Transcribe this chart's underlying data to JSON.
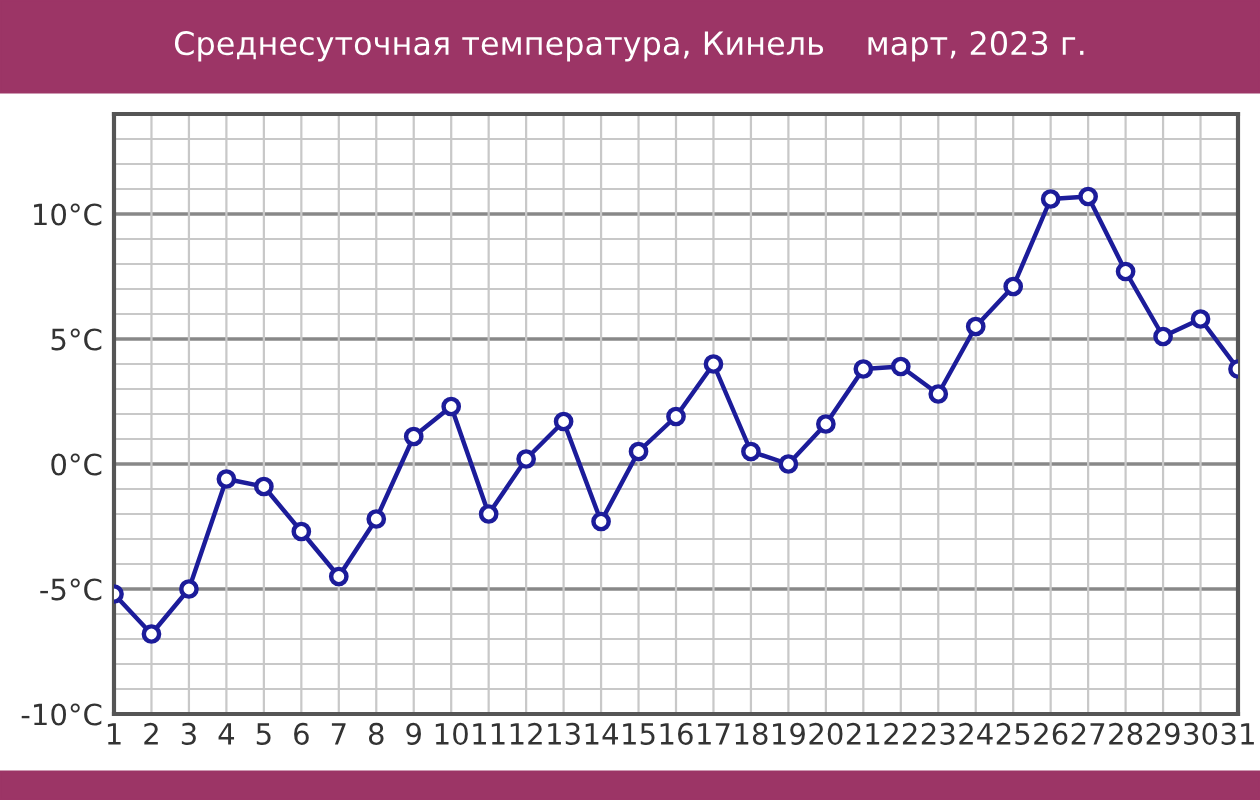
{
  "chart_data": {
    "type": "line",
    "title": "Среднесуточная температура, Кинель    март, 2023 г.",
    "x": [
      1,
      2,
      3,
      4,
      5,
      6,
      7,
      8,
      9,
      10,
      11,
      12,
      13,
      14,
      15,
      16,
      17,
      18,
      19,
      20,
      21,
      22,
      23,
      24,
      25,
      26,
      27,
      28,
      29,
      30,
      31
    ],
    "series": [
      {
        "color": "#1c1c9a",
        "values": [
          -5.2,
          -6.8,
          -5.0,
          -0.6,
          -0.9,
          -2.7,
          -4.5,
          -2.2,
          1.1,
          2.3,
          -2.0,
          0.2,
          1.7,
          -2.3,
          0.5,
          1.9,
          4.0,
          0.5,
          0.0,
          1.6,
          3.8,
          3.9,
          2.8,
          5.5,
          7.1,
          10.6,
          10.7,
          7.7,
          5.1,
          5.8,
          3.8
        ]
      }
    ],
    "xlim": [
      1,
      31
    ],
    "xticks": [
      1,
      2,
      3,
      4,
      5,
      6,
      7,
      8,
      9,
      10,
      11,
      12,
      13,
      14,
      15,
      16,
      17,
      18,
      19,
      20,
      21,
      22,
      23,
      24,
      25,
      26,
      27,
      28,
      29,
      30,
      31
    ],
    "ylim": [
      -10,
      14
    ],
    "yticks": [
      {
        "value": -10,
        "label": "-10°C"
      },
      {
        "value": -9,
        "label": null
      },
      {
        "value": -8,
        "label": null
      },
      {
        "value": -7,
        "label": null
      },
      {
        "value": -6,
        "label": null
      },
      {
        "value": -5,
        "label": "-5°C"
      },
      {
        "value": -4,
        "label": null
      },
      {
        "value": -3,
        "label": null
      },
      {
        "value": -2,
        "label": null
      },
      {
        "value": -1,
        "label": null
      },
      {
        "value": 0,
        "label": "0°C"
      },
      {
        "value": 1,
        "label": null
      },
      {
        "value": 2,
        "label": null
      },
      {
        "value": 3,
        "label": null
      },
      {
        "value": 4,
        "label": null
      },
      {
        "value": 5,
        "label": "5°C"
      },
      {
        "value": 6,
        "label": null
      },
      {
        "value": 7,
        "label": null
      },
      {
        "value": 8,
        "label": null
      },
      {
        "value": 9,
        "label": null
      },
      {
        "value": 10,
        "label": "10°C"
      },
      {
        "value": 11,
        "label": null
      },
      {
        "value": 12,
        "label": null
      },
      {
        "value": 13,
        "label": null
      },
      {
        "value": 14,
        "label": null
      }
    ],
    "grid": true,
    "marker": "circle",
    "line_style": "solid",
    "legend": false
  }
}
